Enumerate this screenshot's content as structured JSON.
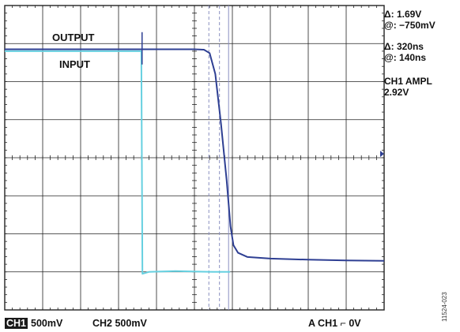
{
  "chart_data": {
    "type": "line",
    "title": "",
    "xlabel": "",
    "ylabel": "",
    "grid": true,
    "x_divisions": 10,
    "y_divisions": 8,
    "xlim": [
      0,
      10
    ],
    "ylim": [
      -4,
      4
    ],
    "series": [
      {
        "name": "OUTPUT",
        "color": "#2e3f93",
        "points": [
          [
            0,
            2.85
          ],
          [
            1,
            2.85
          ],
          [
            2,
            2.85
          ],
          [
            3,
            2.85
          ],
          [
            4,
            2.85
          ],
          [
            5,
            2.85
          ],
          [
            5.25,
            2.84
          ],
          [
            5.4,
            2.75
          ],
          [
            5.55,
            2.2
          ],
          [
            5.7,
            0.9
          ],
          [
            5.85,
            -0.6
          ],
          [
            5.95,
            -1.8
          ],
          [
            6.03,
            -2.3
          ],
          [
            6.15,
            -2.5
          ],
          [
            6.4,
            -2.61
          ],
          [
            7,
            -2.65
          ],
          [
            8,
            -2.68
          ],
          [
            9,
            -2.7
          ],
          [
            10,
            -2.71
          ]
        ]
      },
      {
        "name": "INPUT",
        "color": "#66d0e0",
        "points": [
          [
            0,
            2.8
          ],
          [
            1,
            2.8
          ],
          [
            2,
            2.8
          ],
          [
            3,
            2.8
          ],
          [
            3.6,
            2.8
          ],
          [
            3.63,
            -3.05
          ],
          [
            3.8,
            -3.0
          ],
          [
            4.5,
            -2.98
          ],
          [
            5.5,
            -3.0
          ],
          [
            5.94,
            -3.0
          ]
        ]
      }
    ],
    "labels": {
      "output": "OUTPUT",
      "input": "INPUT"
    },
    "cursors": {
      "dashed": [
        5.38,
        5.66
      ],
      "solid": [
        5.9
      ]
    }
  },
  "readouts": {
    "line1": "Δ: 1.69V",
    "line2": "@: −750mV",
    "line3": "Δ: 320ns",
    "line4": "@: 140ns",
    "line5": "CH1 AMPL",
    "line6": "2.92V"
  },
  "footer": {
    "ch1_badge": "CH1",
    "ch1_scale": "500mV",
    "ch2": "CH2 500mV",
    "trigger_prefix": "A CH1",
    "trigger_symbol": "⌐",
    "trigger_level": "0V"
  },
  "figure_id": "11524-023",
  "colors": {
    "output": "#2e3f93",
    "input": "#66d0e0",
    "grid": "#222222",
    "cursor": "#8a8fc0"
  }
}
